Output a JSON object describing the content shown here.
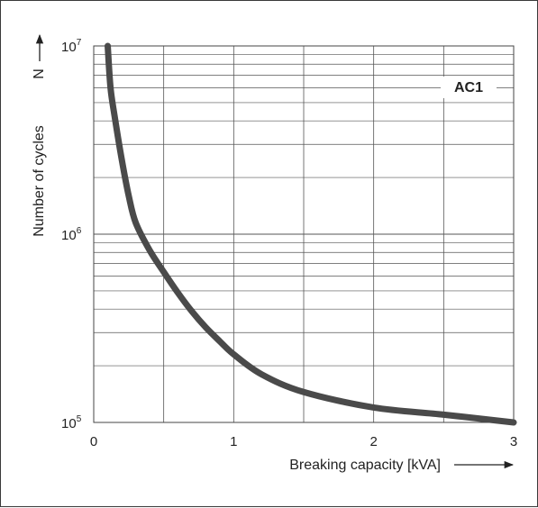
{
  "chart_data": {
    "type": "line",
    "xlabel": "Breaking capacity [kVA]",
    "ylabel": "Number of cycles",
    "y_symbol": "N",
    "annotation": "AC1",
    "x_ticks": [
      0,
      1,
      2,
      3
    ],
    "y_ticks": [
      {
        "base": "10",
        "exp": "5",
        "value": 100000
      },
      {
        "base": "10",
        "exp": "6",
        "value": 1000000
      },
      {
        "base": "10",
        "exp": "7",
        "value": 10000000
      }
    ],
    "xlim": [
      0,
      3
    ],
    "ylim": [
      100000,
      10000000
    ],
    "y_scale": "log",
    "grid": true,
    "series": [
      {
        "color": "#4a4a4a",
        "x": [
          0.1,
          0.12,
          0.15,
          0.2,
          0.25,
          0.3,
          0.4,
          0.5,
          0.6,
          0.7,
          0.8,
          0.9,
          1.0,
          1.2,
          1.5,
          2.0,
          2.5,
          3.0
        ],
        "y": [
          10000000,
          6000000,
          4200000,
          2500000,
          1600000,
          1150000,
          820000,
          630000,
          490000,
          390000,
          320000,
          270000,
          230000,
          180000,
          145000,
          120000,
          110000,
          100000
        ]
      }
    ]
  }
}
